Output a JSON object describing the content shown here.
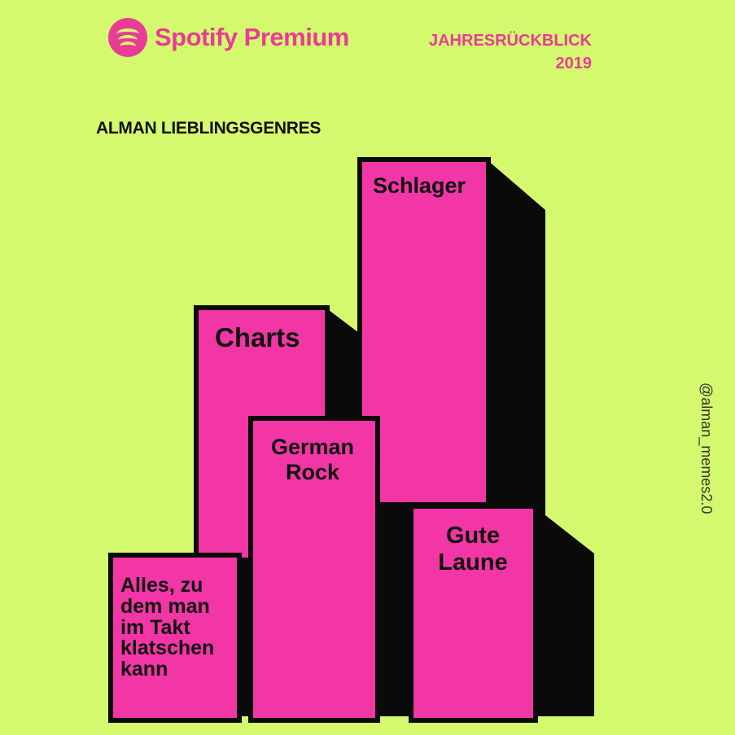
{
  "header": {
    "brand": "Spotify Premium",
    "logo_icon": "spotify-logo-icon",
    "year_title_line1": "JAHRESRÜCKBLICK",
    "year_title_line2": "2019"
  },
  "heading": {
    "part1": "ALMAN",
    "part2": "LIEBLINGSGENRES"
  },
  "watermark": "@alman_memes2.0",
  "colors": {
    "background": "#d4f86e",
    "accent": "#e83c97",
    "bar": "#f236a6",
    "shadow": "#0a0a0a"
  },
  "genres": [
    {
      "label": "Schlager",
      "order": 1
    },
    {
      "label": "Charts",
      "order": 2
    },
    {
      "label": "German Rock",
      "order": 3
    },
    {
      "label": "Gute Laune",
      "order": 4
    },
    {
      "label": "Alles, zu dem man im Takt klatschen kann",
      "order": 5
    }
  ]
}
